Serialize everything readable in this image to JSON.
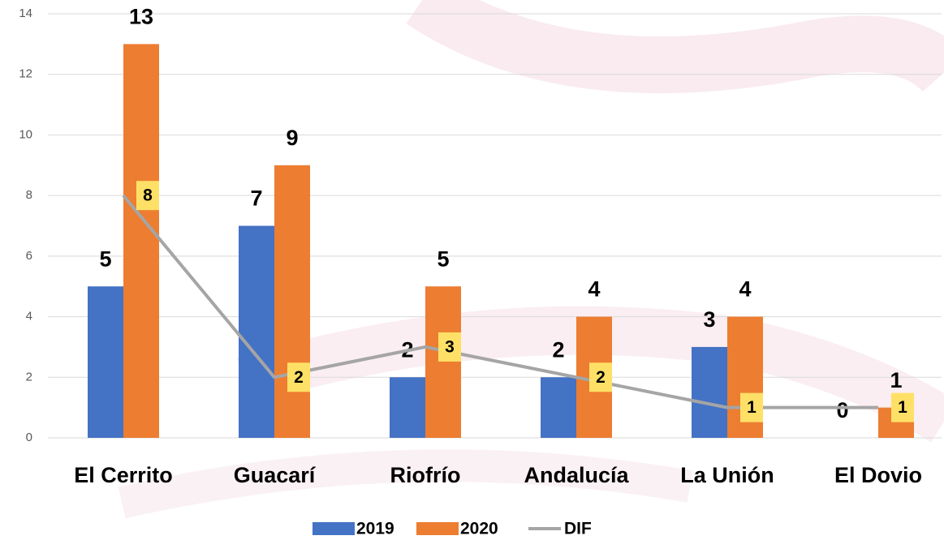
{
  "chart_data": {
    "type": "bar",
    "categories": [
      "El Cerrito",
      "Guacarí",
      "Riofrío",
      "Andalucía",
      "La Unión",
      "El Dovio"
    ],
    "series": [
      {
        "name": "2019",
        "color": "#4472c4",
        "values": [
          5,
          7,
          2,
          2,
          3,
          0
        ]
      },
      {
        "name": "2020",
        "color": "#ed7d31",
        "values": [
          13,
          9,
          5,
          4,
          4,
          1
        ]
      },
      {
        "name": "DIF",
        "type": "line",
        "color": "#a5a5a5",
        "label_color": "#ffe066",
        "values": [
          8,
          2,
          3,
          2,
          1,
          1
        ]
      }
    ],
    "ylim": [
      0,
      14
    ],
    "yticks": [
      0,
      2,
      4,
      6,
      8,
      10,
      12,
      14
    ],
    "grid": true,
    "legend": "bottom"
  }
}
